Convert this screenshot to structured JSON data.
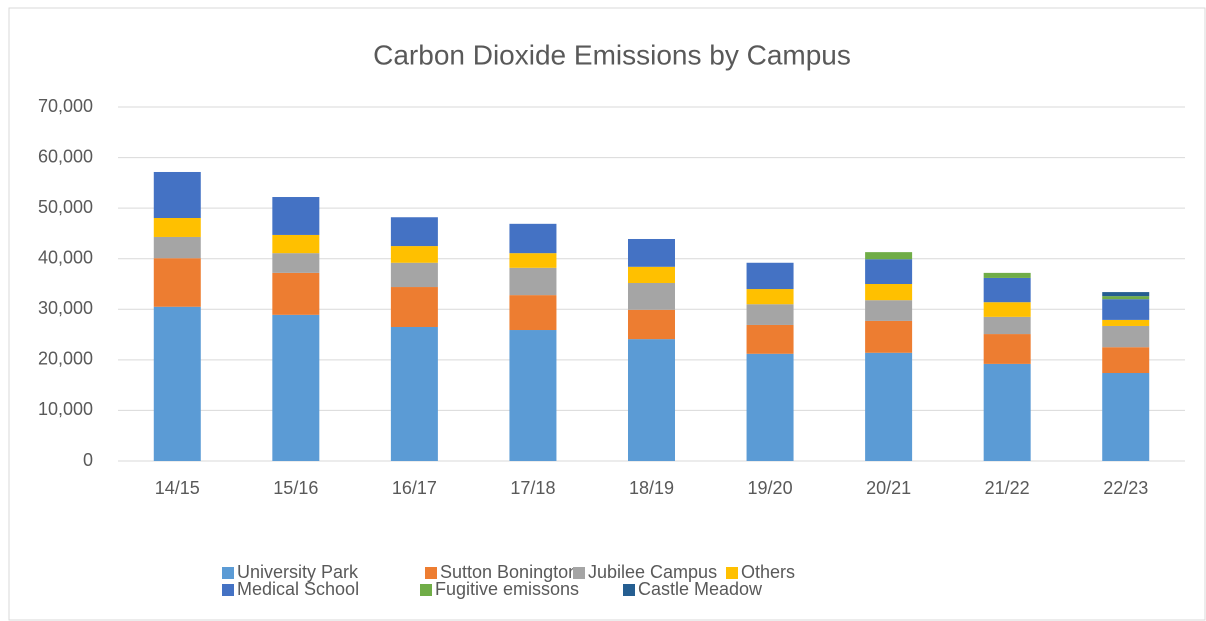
{
  "chart_data": {
    "type": "stacked_bar",
    "title": "Carbon Dioxide Emissions by Campus",
    "categories": [
      "14/15",
      "15/16",
      "16/17",
      "17/18",
      "18/19",
      "19/20",
      "20/21",
      "21/22",
      "22/23"
    ],
    "series": [
      {
        "name": "University Park",
        "color": "#5b9bd5",
        "values": [
          30500,
          28900,
          26500,
          25900,
          24100,
          21200,
          21400,
          19200,
          17400
        ]
      },
      {
        "name": "Sutton Bonington",
        "color": "#ed7d31",
        "values": [
          9600,
          8300,
          7900,
          6900,
          5800,
          5700,
          6300,
          5900,
          5100
        ]
      },
      {
        "name": "Jubilee Campus",
        "color": "#a5a5a5",
        "values": [
          4200,
          3900,
          4800,
          5400,
          5300,
          4100,
          4100,
          3400,
          4200
        ]
      },
      {
        "name": "Others",
        "color": "#ffc000",
        "values": [
          3750,
          3600,
          3300,
          2900,
          3200,
          3000,
          3200,
          2900,
          1200
        ]
      },
      {
        "name": "Medical School",
        "color": "#4472c4",
        "values": [
          9100,
          7500,
          5700,
          5800,
          5500,
          5200,
          4900,
          4800,
          4100
        ]
      },
      {
        "name": "Fugitive emissons",
        "color": "#70ad47",
        "values": [
          0,
          0,
          0,
          0,
          0,
          0,
          1400,
          1000,
          600
        ]
      },
      {
        "name": "Castle Meadow",
        "color": "#255e91",
        "values": [
          0,
          0,
          0,
          0,
          0,
          0,
          0,
          0,
          800
        ]
      }
    ],
    "ylim": [
      0,
      70000
    ],
    "yticks": [
      0,
      {
        "value": 10000,
        "label": "10,000"
      },
      {
        "value": 20000,
        "label": "20,000"
      },
      {
        "value": 30000,
        "label": "30,000"
      },
      {
        "value": 40000,
        "label": "40,000"
      },
      {
        "value": 50000,
        "label": "50,000"
      },
      {
        "value": 60000,
        "label": "60,000"
      },
      {
        "value": 70000,
        "label": "70,000"
      }
    ],
    "grid": true,
    "legend": "bottom"
  }
}
